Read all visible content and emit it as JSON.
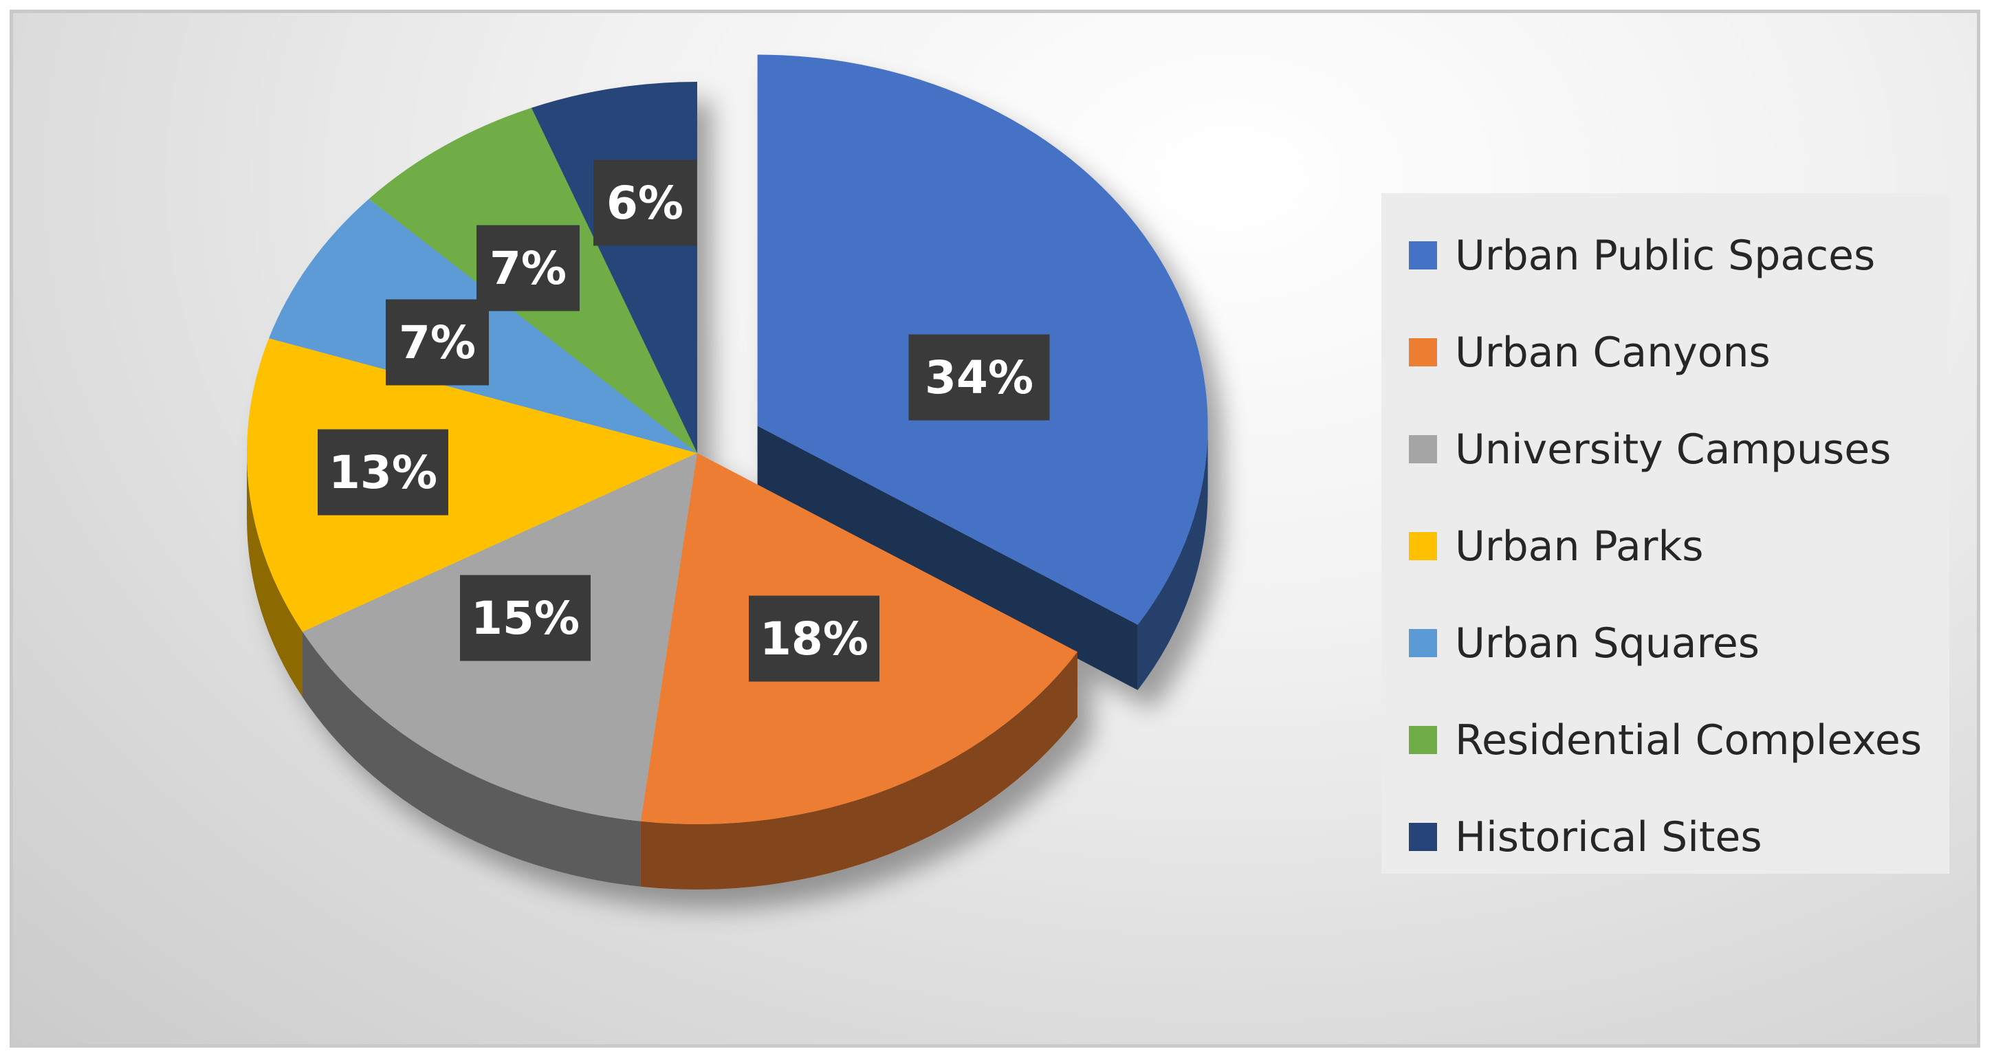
{
  "chart_data": {
    "type": "pie",
    "categories": [
      "Urban Public Spaces",
      "Urban Canyons",
      "University Campuses",
      "Urban Parks",
      "Urban Squares",
      "Residential Complexes",
      "Historical Sites"
    ],
    "values": [
      34,
      18,
      15,
      13,
      7,
      7,
      6
    ],
    "data_labels": [
      "34%",
      "18%",
      "15%",
      "13%",
      "7%",
      "7%",
      "6%"
    ],
    "colors": [
      "#4472c4",
      "#ed7d31",
      "#a5a5a5",
      "#ffc000",
      "#5b9bd5",
      "#70ad47",
      "#264478"
    ],
    "exploded_slice": "Urban Public Spaces",
    "legend_placement": "right",
    "style": "3d"
  }
}
